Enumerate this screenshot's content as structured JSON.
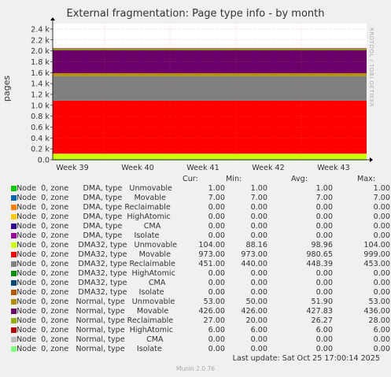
{
  "title": "External fragmentation: Page type info - by month",
  "ylabel": "pages",
  "side_label": "RRDTOOL / TOBI OETIKER",
  "header": {
    "cur": "Cur:",
    "min": "Min:",
    "avg": "Avg:",
    "max": "Max:"
  },
  "last_update": "Last update: Sat Oct 25 17:00:14 2025",
  "footer": "Munin 2.0.76",
  "chart_data": {
    "type": "area",
    "stacked": true,
    "title": "External fragmentation: Page type info - by month",
    "ylabel": "pages",
    "ylim": [
      0,
      2500
    ],
    "y_ticks": [
      "0.0",
      "0.2 k",
      "0.4 k",
      "0.6 k",
      "0.8 k",
      "1.0 k",
      "1.2 k",
      "1.4 k",
      "1.6 k",
      "1.8 k",
      "2.0 k",
      "2.2 k",
      "2.4 k"
    ],
    "x_ticks": [
      "Week 39",
      "Week 40",
      "Week 41",
      "Week 42",
      "Week 43"
    ],
    "series": [
      {
        "name": "Node  0, zone      DMA, type   Unmovable",
        "color": "#00cc00",
        "cur": "1.00",
        "min": "1.00",
        "avg": "1.00",
        "max": "1.00",
        "value": 1
      },
      {
        "name": "Node  0, zone      DMA, type     Movable",
        "color": "#0066b3",
        "cur": "7.00",
        "min": "7.00",
        "avg": "7.00",
        "max": "7.00",
        "value": 7
      },
      {
        "name": "Node  0, zone      DMA, type Reclaimable",
        "color": "#ff8000",
        "cur": "0.00",
        "min": "0.00",
        "avg": "0.00",
        "max": "0.00",
        "value": 0
      },
      {
        "name": "Node  0, zone      DMA, type  HighAtomic",
        "color": "#ffcc00",
        "cur": "0.00",
        "min": "0.00",
        "avg": "0.00",
        "max": "0.00",
        "value": 0
      },
      {
        "name": "Node  0, zone      DMA, type         CMA",
        "color": "#330099",
        "cur": "0.00",
        "min": "0.00",
        "avg": "0.00",
        "max": "0.00",
        "value": 0
      },
      {
        "name": "Node  0, zone      DMA, type     Isolate",
        "color": "#990099",
        "cur": "0.00",
        "min": "0.00",
        "avg": "0.00",
        "max": "0.00",
        "value": 0
      },
      {
        "name": "Node  0, zone    DMA32, type   Unmovable",
        "color": "#ccff00",
        "cur": "104.00",
        "min": "88.16",
        "avg": "98.96",
        "max": "104.00",
        "value": 104
      },
      {
        "name": "Node  0, zone    DMA32, type     Movable",
        "color": "#ff0000",
        "cur": "973.00",
        "min": "973.00",
        "avg": "980.65",
        "max": "999.00",
        "value": 973
      },
      {
        "name": "Node  0, zone    DMA32, type Reclaimable",
        "color": "#808080",
        "cur": "451.00",
        "min": "440.00",
        "avg": "448.39",
        "max": "453.00",
        "value": 451
      },
      {
        "name": "Node  0, zone    DMA32, type  HighAtomic",
        "color": "#008f00",
        "cur": "0.00",
        "min": "0.00",
        "avg": "0.00",
        "max": "0.00",
        "value": 0
      },
      {
        "name": "Node  0, zone    DMA32, type         CMA",
        "color": "#00487d",
        "cur": "0.00",
        "min": "0.00",
        "avg": "0.00",
        "max": "0.00",
        "value": 0
      },
      {
        "name": "Node  0, zone    DMA32, type     Isolate",
        "color": "#b35a00",
        "cur": "0.00",
        "min": "0.00",
        "avg": "0.00",
        "max": "0.00",
        "value": 0
      },
      {
        "name": "Node  0, zone   Normal, type   Unmovable",
        "color": "#b38f00",
        "cur": "53.00",
        "min": "50.00",
        "avg": "51.90",
        "max": "53.00",
        "value": 53
      },
      {
        "name": "Node  0, zone   Normal, type     Movable",
        "color": "#6b006b",
        "cur": "426.00",
        "min": "426.00",
        "avg": "427.83",
        "max": "436.00",
        "value": 426
      },
      {
        "name": "Node  0, zone   Normal, type Reclaimable",
        "color": "#8fb300",
        "cur": "27.00",
        "min": "20.00",
        "avg": "26.27",
        "max": "28.00",
        "value": 27
      },
      {
        "name": "Node  0, zone   Normal, type  HighAtomic",
        "color": "#b30000",
        "cur": "6.00",
        "min": "6.00",
        "avg": "6.00",
        "max": "6.00",
        "value": 6
      },
      {
        "name": "Node  0, zone   Normal, type         CMA",
        "color": "#bebebe",
        "cur": "0.00",
        "min": "0.00",
        "avg": "0.00",
        "max": "0.00",
        "value": 0
      },
      {
        "name": "Node  0, zone   Normal, type     Isolate",
        "color": "#80ff80",
        "cur": "0.00",
        "min": "0.00",
        "avg": "0.00",
        "max": "0.00",
        "value": 0
      }
    ]
  }
}
